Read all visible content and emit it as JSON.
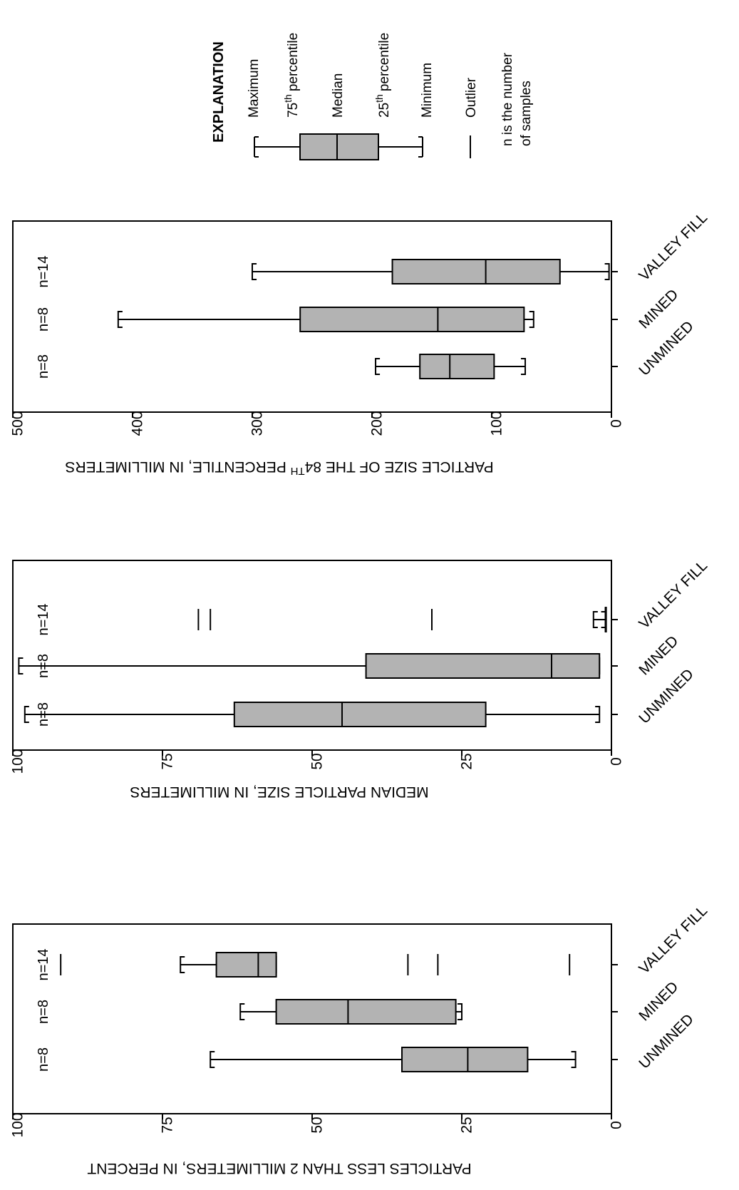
{
  "chart_data": [
    {
      "type": "box",
      "ylabel": "PARTICLES LESS THAN 2 MILLIMETERS, IN PERCENT",
      "ylim": [
        0,
        100
      ],
      "yticks": [
        "0",
        "25",
        "50",
        "75",
        "100"
      ],
      "categories": [
        "UNMINED",
        "MINED",
        "VALLEY FILL"
      ],
      "n_labels": [
        "n=8",
        "n=8",
        "n=14"
      ],
      "boxes": [
        {
          "category": "UNMINED",
          "min": 6,
          "q1": 14,
          "median": 24,
          "q3": 35,
          "max": 67,
          "outliers": []
        },
        {
          "category": "MINED",
          "min": 25,
          "q1": 26,
          "median": 44,
          "q3": 56,
          "max": 62,
          "outliers": []
        },
        {
          "category": "VALLEY FILL",
          "min": 56,
          "q1": 56,
          "median": 59,
          "q3": 66,
          "max": 72,
          "outliers": [
            7,
            29,
            34,
            92
          ]
        }
      ]
    },
    {
      "type": "box",
      "ylabel": "MEDIAN PARTICLE SIZE, IN MILLIMETERS",
      "ylim": [
        0,
        100
      ],
      "yticks": [
        "0",
        "25",
        "50",
        "75",
        "100"
      ],
      "categories": [
        "UNMINED",
        "MINED",
        "VALLEY FILL"
      ],
      "n_labels": [
        "n=8",
        "n=8",
        "n=14"
      ],
      "boxes": [
        {
          "category": "UNMINED",
          "min": 2,
          "q1": 21,
          "median": 45,
          "q3": 63,
          "max": 98,
          "outliers": []
        },
        {
          "category": "MINED",
          "min": 2,
          "q1": 2,
          "median": 10,
          "q3": 41,
          "max": 99,
          "outliers": []
        },
        {
          "category": "VALLEY FILL",
          "min": 1,
          "q1": 1,
          "median": 1,
          "q3": 1,
          "max": 3,
          "outliers": [
            30,
            67,
            69
          ]
        }
      ]
    },
    {
      "type": "box",
      "ylabel_parts": [
        "PARTICLE SIZE OF THE 84",
        "TH",
        " PERCENTILE, IN MILLIMETERS"
      ],
      "ylim": [
        0,
        500
      ],
      "yticks": [
        "0",
        "100",
        "200",
        "300",
        "400",
        "500"
      ],
      "categories": [
        "UNMINED",
        "MINED",
        "VALLEY FILL"
      ],
      "n_labels": [
        "n=8",
        "n=8",
        "n=14"
      ],
      "boxes": [
        {
          "category": "UNMINED",
          "min": 72,
          "q1": 98,
          "median": 135,
          "q3": 160,
          "max": 197,
          "outliers": []
        },
        {
          "category": "MINED",
          "min": 65,
          "q1": 73,
          "median": 145,
          "q3": 260,
          "max": 412,
          "outliers": []
        },
        {
          "category": "VALLEY FILL",
          "min": 2,
          "q1": 43,
          "median": 105,
          "q3": 183,
          "max": 300,
          "outliers": []
        }
      ]
    }
  ],
  "explanation": {
    "title": "EXPLANATION",
    "maximum": "Maximum",
    "p75_num": "75",
    "p75_sup": "th",
    "p75_word": "percentile",
    "median": "Median",
    "p25_num": "25",
    "p25_sup": "th",
    "p25_word": "percentile",
    "minimum": "Minimum",
    "outlier": "Outlier",
    "n_line1": "n is the number",
    "n_line2": "of samples"
  },
  "colors": {
    "box_fill": "#b3b3b3",
    "line": "#000000",
    "background": "#ffffff"
  }
}
